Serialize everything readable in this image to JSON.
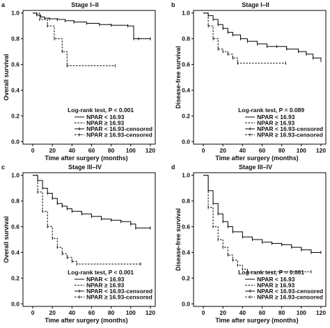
{
  "chart_data": [
    {
      "type": "line",
      "panel": "a",
      "title": "Stage I–II",
      "xlabel": "Time after surgery (months)",
      "ylabel": "Overall survival",
      "xlim": [
        -10,
        125
      ],
      "ylim": [
        -0.02,
        1.02
      ],
      "xticks": [
        0,
        20,
        40,
        60,
        80,
        100,
        120
      ],
      "yticks": [
        0.0,
        0.2,
        0.4,
        0.6,
        0.8,
        1.0
      ],
      "xtick_labels": [
        "0",
        "20",
        "40",
        "60",
        "80",
        "100",
        "120"
      ],
      "ytick_labels": [
        "0.0",
        "0.2",
        "0.4",
        "0.6",
        "0.8",
        "1.0"
      ],
      "pvalue_text": "Log-rank test, P < 0.001",
      "legend": [
        "NPAR < 16.93",
        "NPAR ≥ 16.93",
        "NPAR < 16.93-censored",
        "NPAR ≥ 16.93-censored"
      ],
      "series": [
        {
          "name": "NPAR < 16.93",
          "style": "solid",
          "x": [
            0,
            4,
            8,
            12,
            17,
            25,
            33,
            42,
            55,
            68,
            80,
            97,
            103,
            108,
            120
          ],
          "y": [
            1.0,
            0.985,
            0.97,
            0.96,
            0.955,
            0.95,
            0.94,
            0.93,
            0.92,
            0.91,
            0.905,
            0.9,
            0.8,
            0.8,
            0.8
          ]
        },
        {
          "name": "NPAR ≥ 16.93",
          "style": "dashed",
          "x": [
            0,
            7,
            15,
            22,
            30,
            35,
            84
          ],
          "y": [
            1.0,
            0.95,
            0.9,
            0.8,
            0.7,
            0.59,
            0.59
          ]
        }
      ]
    },
    {
      "type": "line",
      "panel": "b",
      "title": "Stage I–II",
      "xlabel": "Time after surgery (months)",
      "ylabel": "Disease-free survival",
      "xlim": [
        -10,
        125
      ],
      "ylim": [
        -0.02,
        1.02
      ],
      "xticks": [
        0,
        20,
        40,
        60,
        80,
        100,
        120
      ],
      "yticks": [
        0.0,
        0.2,
        0.4,
        0.6,
        0.8,
        1.0
      ],
      "xtick_labels": [
        "0",
        "20",
        "40",
        "60",
        "80",
        "100",
        "120"
      ],
      "ytick_labels": [
        "0.0",
        "0.2",
        "0.4",
        "0.6",
        "0.8",
        "1.0"
      ],
      "pvalue_text": "Log-rank test, P = 0.089",
      "legend": [
        "NPAR < 16.93",
        "NPAR ≥ 16.93",
        "NPAR < 16.93-censored",
        "NPAR ≥ 16.93-censored"
      ],
      "series": [
        {
          "name": "NPAR < 16.93",
          "style": "solid",
          "x": [
            0,
            5,
            10,
            15,
            20,
            25,
            30,
            38,
            45,
            55,
            65,
            75,
            85,
            97,
            105,
            112,
            120
          ],
          "y": [
            1.0,
            0.98,
            0.95,
            0.91,
            0.88,
            0.85,
            0.83,
            0.8,
            0.78,
            0.76,
            0.74,
            0.74,
            0.72,
            0.7,
            0.68,
            0.65,
            0.63
          ]
        },
        {
          "name": "NPAR ≥ 16.93",
          "style": "dashed",
          "x": [
            0,
            5,
            10,
            15,
            20,
            25,
            30,
            35,
            84
          ],
          "y": [
            1.0,
            0.9,
            0.8,
            0.72,
            0.7,
            0.68,
            0.65,
            0.61,
            0.61
          ]
        }
      ]
    },
    {
      "type": "line",
      "panel": "c",
      "title": "Stage III–IV",
      "xlabel": "Time after surgery (months)",
      "ylabel": "Overall survival",
      "xlim": [
        -10,
        125
      ],
      "ylim": [
        -0.02,
        1.02
      ],
      "xticks": [
        0,
        20,
        40,
        60,
        80,
        100,
        120
      ],
      "yticks": [
        0.0,
        0.2,
        0.4,
        0.6,
        0.8,
        1.0
      ],
      "xtick_labels": [
        "0",
        "20",
        "40",
        "60",
        "80",
        "100",
        "120"
      ],
      "ytick_labels": [
        "0.0",
        "0.2",
        "0.4",
        "0.6",
        "0.8",
        "1.0"
      ],
      "pvalue_text": "Log-rank test, P < 0.001",
      "legend": [
        "NPAR < 16.93",
        "NPAR ≥ 16.93",
        "NPAR < 16.93-censored",
        "NPAR ≥ 16.93-censored"
      ],
      "series": [
        {
          "name": "NPAR < 16.93",
          "style": "solid",
          "x": [
            0,
            5,
            10,
            15,
            20,
            25,
            30,
            35,
            40,
            50,
            60,
            70,
            80,
            90,
            100,
            105,
            120
          ],
          "y": [
            1.0,
            0.96,
            0.9,
            0.86,
            0.82,
            0.78,
            0.76,
            0.74,
            0.72,
            0.7,
            0.68,
            0.66,
            0.65,
            0.64,
            0.62,
            0.59,
            0.59
          ]
        },
        {
          "name": "NPAR ≥ 16.93",
          "style": "dashed",
          "x": [
            0,
            5,
            10,
            15,
            20,
            25,
            30,
            35,
            40,
            45,
            110
          ],
          "y": [
            1.0,
            0.87,
            0.72,
            0.6,
            0.51,
            0.44,
            0.39,
            0.36,
            0.33,
            0.31,
            0.31
          ]
        }
      ]
    },
    {
      "type": "line",
      "panel": "d",
      "title": "Stage III–IV",
      "xlabel": "Time after surgery (months)",
      "ylabel": "Disease-free survival",
      "xlim": [
        -10,
        125
      ],
      "ylim": [
        -0.02,
        1.02
      ],
      "xticks": [
        0,
        20,
        40,
        60,
        80,
        100,
        120
      ],
      "yticks": [
        0.0,
        0.2,
        0.4,
        0.6,
        0.8,
        1.0
      ],
      "xtick_labels": [
        "0",
        "20",
        "40",
        "60",
        "80",
        "100",
        "120"
      ],
      "ytick_labels": [
        "0.0",
        "0.2",
        "0.4",
        "0.6",
        "0.8",
        "1.0"
      ],
      "pvalue_text": "Log-rank test, P = 0.001",
      "legend": [
        "NPAR < 16.93",
        "NPAR ≥ 16.93",
        "NPAR < 16.93-censored",
        "NPAR ≥ 16.93-censored"
      ],
      "series": [
        {
          "name": "NPAR < 16.93",
          "style": "solid",
          "x": [
            0,
            5,
            10,
            15,
            20,
            25,
            30,
            40,
            50,
            60,
            70,
            80,
            90,
            100,
            110,
            120
          ],
          "y": [
            1.0,
            0.88,
            0.78,
            0.7,
            0.64,
            0.6,
            0.56,
            0.52,
            0.5,
            0.48,
            0.47,
            0.46,
            0.44,
            0.42,
            0.4,
            0.4
          ]
        },
        {
          "name": "NPAR ≥ 16.93",
          "style": "dashed",
          "x": [
            0,
            5,
            10,
            15,
            20,
            25,
            30,
            35,
            40,
            45,
            110
          ],
          "y": [
            1.0,
            0.75,
            0.6,
            0.5,
            0.44,
            0.38,
            0.34,
            0.3,
            0.27,
            0.25,
            0.25
          ]
        }
      ]
    }
  ]
}
